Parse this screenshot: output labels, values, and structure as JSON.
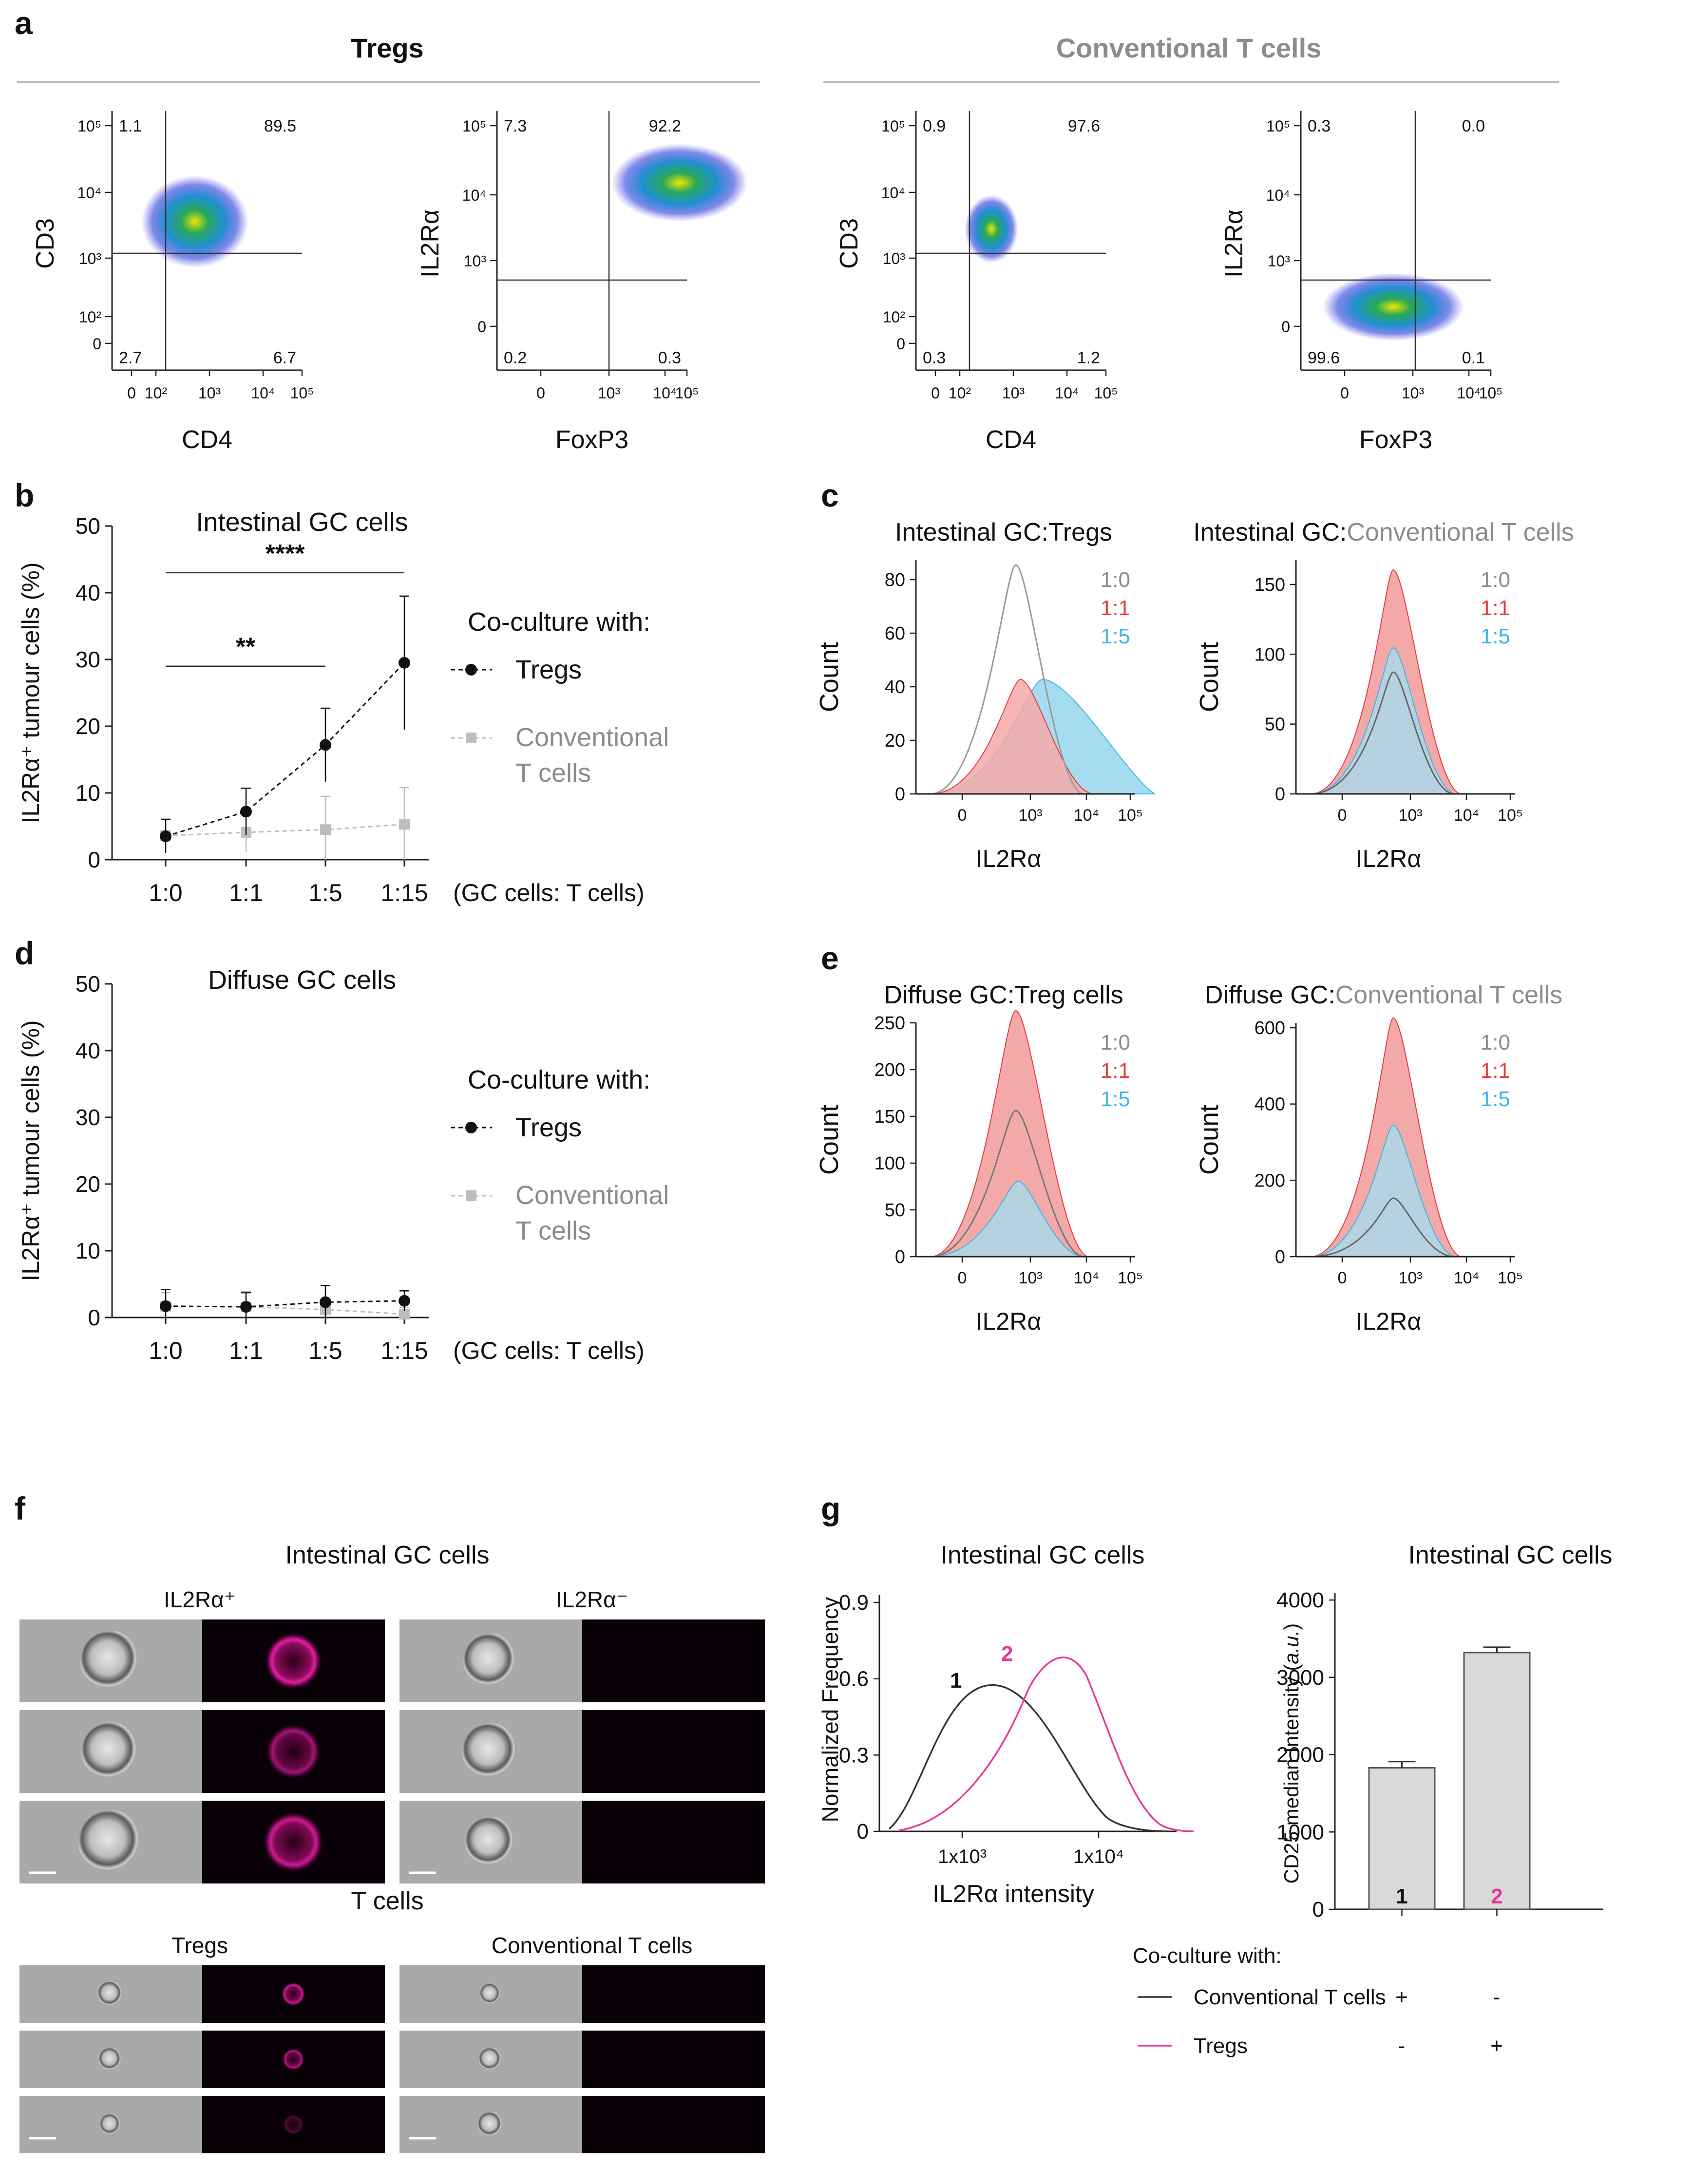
{
  "colors": {
    "black": "#111111",
    "gray": "#8c8c8c",
    "lightgray": "#bdbdbd",
    "red": "#e8393f",
    "redfill": "#f4a9a9",
    "cyan": "#3cb4e6",
    "cyanfill": "#a6dcef",
    "magenta": "#e8379a",
    "bar": "#d9d9d9"
  },
  "panel_a": {
    "letter": "a",
    "group_tregs": "Tregs",
    "group_conv": "Conventional T cells",
    "plots": [
      {
        "xlabel": "CD4",
        "ylabel": "CD3",
        "q_ul": "1.1",
        "q_ur": "89.5",
        "q_ll": "2.7",
        "q_lr": "6.7"
      },
      {
        "xlabel": "FoxP3",
        "ylabel": "IL2Rα",
        "q_ul": "7.3",
        "q_ur": "92.2",
        "q_ll": "0.2",
        "q_lr": "0.3"
      },
      {
        "xlabel": "CD4",
        "ylabel": "CD3",
        "q_ul": "0.9",
        "q_ur": "97.6",
        "q_ll": "0.3",
        "q_lr": "1.2"
      },
      {
        "xlabel": "FoxP3",
        "ylabel": "IL2Rα",
        "q_ul": "0.3",
        "q_ur": "0.0",
        "q_ll": "99.6",
        "q_lr": "0.1"
      }
    ],
    "y_ticks_cd3": [
      "10⁵",
      "10⁴",
      "10³",
      "10²",
      "0"
    ],
    "y_ticks_il2": [
      "10⁵",
      "10⁴",
      "10³",
      "0"
    ],
    "x_ticks_cd4": [
      "0",
      "10²",
      "10³",
      "10⁴",
      "10⁵"
    ],
    "x_ticks_foxp3": [
      "0",
      "10³",
      "10⁴",
      "10⁵"
    ]
  },
  "panel_b": {
    "letter": "b",
    "title": "Intestinal GC cells",
    "sig_upper": "****",
    "sig_lower": "**"
  },
  "panel_d": {
    "letter": "d",
    "title": "Diffuse GC cells"
  },
  "line_common": {
    "ylabel": "IL2Rα⁺ tumour cells (%)",
    "x_suffix": "(GC cells: T cells)",
    "legend_title": "Co-culture with:",
    "legend_tregs": "Tregs",
    "legend_conv_1": "Conventional",
    "legend_conv_2": "T cells",
    "y_ticks": [
      "0",
      "10",
      "20",
      "30",
      "40",
      "50"
    ]
  },
  "panel_c": {
    "letter": "c",
    "left_title": "Intestinal GC:Tregs",
    "right_title_black": "Intestinal GC:",
    "right_title_gray": "Conventional T cells",
    "left_yticks": [
      "0",
      "20",
      "40",
      "60",
      "80"
    ],
    "right_yticks": [
      "0",
      "50",
      "100",
      "150"
    ]
  },
  "panel_e": {
    "letter": "e",
    "left_title": "Diffuse GC:Treg cells",
    "right_title_black": "Diffuse GC:",
    "right_title_gray": "Conventional T cells",
    "left_yticks": [
      "0",
      "50",
      "100",
      "150",
      "200",
      "250"
    ],
    "right_yticks": [
      "0",
      "200",
      "400",
      "600"
    ]
  },
  "hist_common": {
    "ylabel": "Count",
    "xlabel": "IL2Rα",
    "legend": [
      "1:0",
      "1:1",
      "1:5"
    ],
    "x_ticks": [
      "0",
      "10³",
      "10⁴",
      "10⁵"
    ]
  },
  "panel_f": {
    "letter": "f",
    "top_title": "Intestinal GC cells",
    "col_pos": "IL2Rα⁺",
    "col_neg": "IL2Rα⁻",
    "bottom_title": "T cells",
    "col_tregs": "Tregs",
    "col_conv": "Conventional T cells"
  },
  "panel_g": {
    "letter": "g",
    "left_title": "Intestinal GC cells",
    "left_ylabel": "Normalized Frequency",
    "left_xlabel": "IL2Rα intensity",
    "left_yticks": [
      "0",
      "0.3",
      "0.6",
      "0.9"
    ],
    "left_xticks": [
      "1x10³",
      "1x10⁴"
    ],
    "curve1_label": "1",
    "curve2_label": "2",
    "right_title": "Intestinal GC cells",
    "right_ylabel_main": "CD25 median Intensity (",
    "right_ylabel_unit": "a.u.",
    "right_ylabel_close": ")",
    "right_yticks": [
      "0",
      "1000",
      "2000",
      "3000",
      "4000"
    ],
    "bar1_label": "1",
    "bar2_label": "2",
    "legend_title": "Co-culture with:",
    "legend_conv": "Conventional T cells",
    "legend_tregs": "Tregs",
    "sign_conv": [
      "+",
      "-"
    ],
    "sign_tregs": [
      "-",
      "+"
    ]
  },
  "chart_data": [
    {
      "id": "b",
      "type": "line",
      "title": "Intestinal GC cells",
      "categories": [
        "1:0",
        "1:1",
        "1:5",
        "1:15"
      ],
      "xlabel": "(GC cells: T cells)",
      "ylabel": "IL2Rα⁺ tumour cells (%)",
      "ylim": [
        0,
        50
      ],
      "series": [
        {
          "name": "Tregs",
          "values": [
            3.5,
            7.2,
            17.2,
            29.5
          ],
          "err": [
            2.5,
            3.5,
            5.5,
            10.0
          ]
        },
        {
          "name": "Conventional T cells",
          "values": [
            3.6,
            4.1,
            4.5,
            5.3
          ],
          "err": [
            2.5,
            3.0,
            5.0,
            5.5
          ]
        }
      ],
      "significance": [
        {
          "pair": [
            "1:0",
            "1:5"
          ],
          "label": "**"
        },
        {
          "pair": [
            "1:0",
            "1:15"
          ],
          "label": "****"
        }
      ]
    },
    {
      "id": "d",
      "type": "line",
      "title": "Diffuse GC cells",
      "categories": [
        "1:0",
        "1:1",
        "1:5",
        "1:15"
      ],
      "xlabel": "(GC cells: T cells)",
      "ylabel": "IL2Rα⁺ tumour cells (%)",
      "ylim": [
        0,
        50
      ],
      "series": [
        {
          "name": "Tregs",
          "values": [
            1.7,
            1.6,
            2.3,
            2.5
          ],
          "err": [
            2.5,
            2.2,
            2.5,
            1.5
          ]
        },
        {
          "name": "Conventional T cells",
          "values": [
            1.7,
            1.6,
            1.2,
            0.5
          ],
          "err": [
            2.0,
            2.0,
            1.5,
            1.0
          ]
        }
      ]
    },
    {
      "id": "g-right",
      "type": "bar",
      "title": "Intestinal GC cells",
      "categories": [
        "1",
        "2"
      ],
      "values": [
        1830,
        3320
      ],
      "err": [
        80,
        70
      ],
      "ylabel": "CD25 median Intensity (a.u.)",
      "ylim": [
        0,
        4000
      ]
    }
  ]
}
